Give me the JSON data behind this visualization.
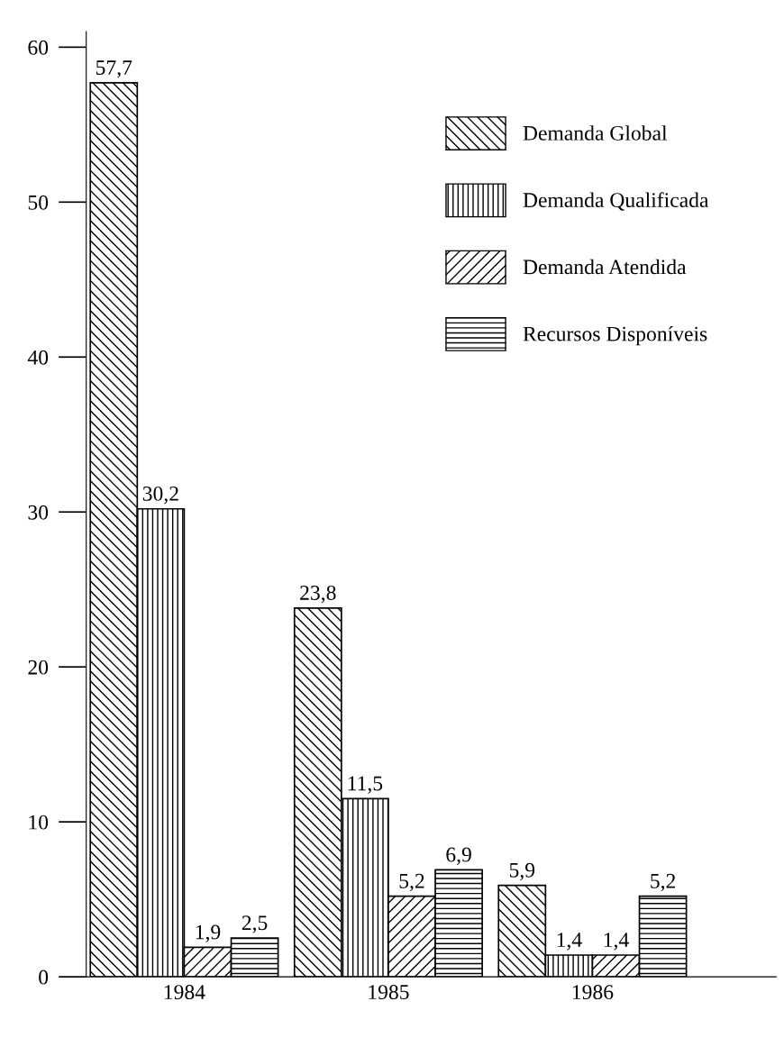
{
  "chart_data": {
    "type": "bar",
    "categories": [
      "1984",
      "1985",
      "1986"
    ],
    "series": [
      {
        "name": "Demanda Global",
        "color": "#000000",
        "values": [
          57.7,
          23.8,
          5.9
        ],
        "value_labels": [
          "57,7",
          "23,8",
          "5,9"
        ]
      },
      {
        "name": "Demanda Qualificada",
        "color": "#000000",
        "values": [
          30.2,
          11.5,
          1.4
        ],
        "value_labels": [
          "30,2",
          "11,5",
          "1,4"
        ]
      },
      {
        "name": "Demanda Atendida",
        "color": "#000000",
        "values": [
          1.9,
          5.2,
          1.4
        ],
        "value_labels": [
          "1,9",
          "5,2",
          "1,4"
        ]
      },
      {
        "name": "Recursos Disponíveis",
        "color": "#000000",
        "values": [
          2.5,
          6.9,
          5.2
        ],
        "value_labels": [
          "2,5",
          "6,9",
          "5,2"
        ]
      }
    ],
    "ylim": [
      0,
      61
    ],
    "yticks": [
      0,
      10,
      20,
      30,
      40,
      50,
      60
    ],
    "grid": false,
    "legend": "top right"
  }
}
